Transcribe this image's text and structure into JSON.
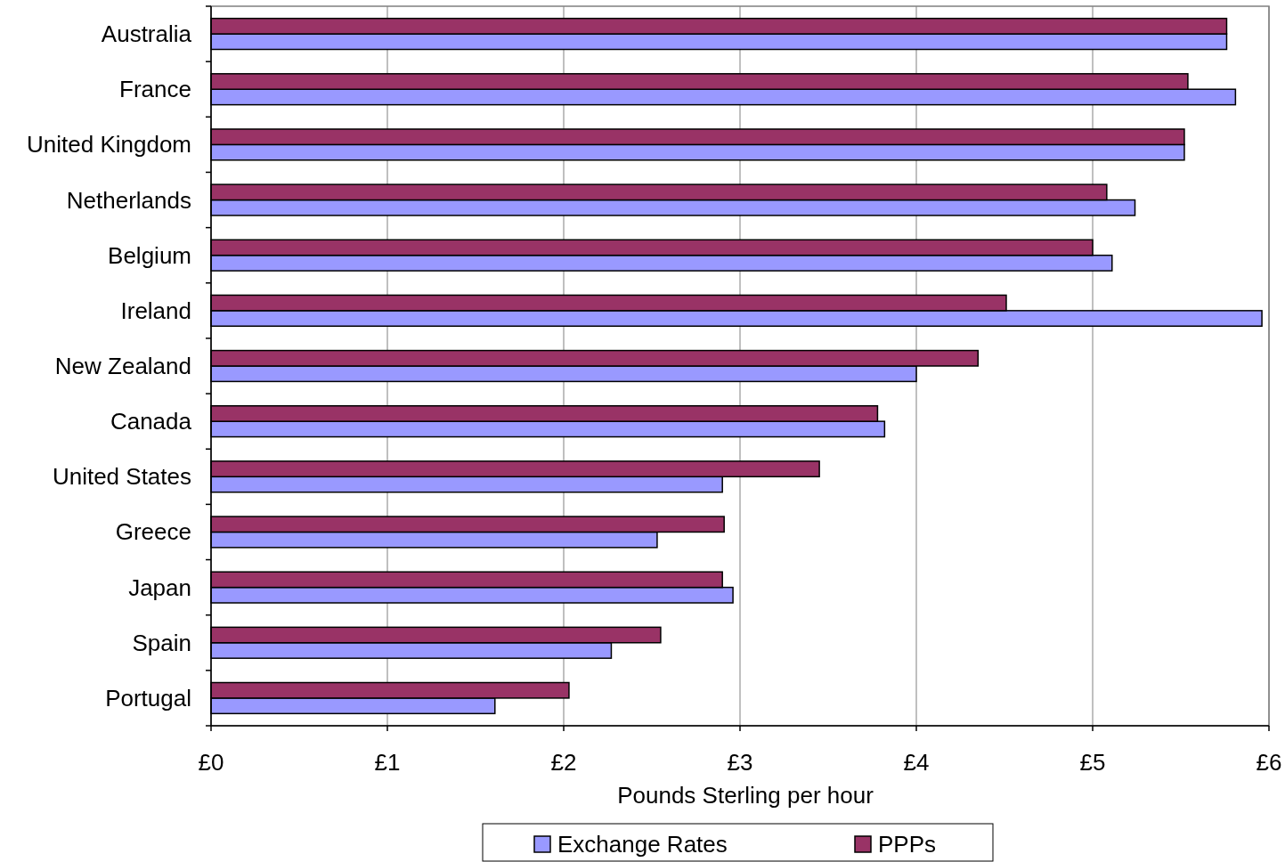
{
  "chart_data": {
    "type": "bar",
    "orientation": "horizontal",
    "xlabel": "Pounds Sterling per hour",
    "categories": [
      "Australia",
      "France",
      "United Kingdom",
      "Netherlands",
      "Belgium",
      "Ireland",
      "New Zealand",
      "Canada",
      "United States",
      "Greece",
      "Japan",
      "Spain",
      "Portugal"
    ],
    "series": [
      {
        "name": "Exchange Rates",
        "color": "#9999ff",
        "values": [
          5.76,
          5.81,
          5.52,
          5.24,
          5.11,
          5.96,
          4.0,
          3.82,
          2.9,
          2.53,
          2.96,
          2.27,
          1.61
        ]
      },
      {
        "name": "PPPs",
        "color": "#993366",
        "values": [
          5.76,
          5.54,
          5.52,
          5.08,
          5.0,
          4.51,
          4.35,
          3.78,
          3.45,
          2.91,
          2.9,
          2.55,
          2.03
        ]
      }
    ],
    "xlim": [
      0,
      6
    ],
    "xticks": [
      {
        "value": 0,
        "label": "£0"
      },
      {
        "value": 1,
        "label": "£1"
      },
      {
        "value": 2,
        "label": "£2"
      },
      {
        "value": 3,
        "label": "£3"
      },
      {
        "value": 4,
        "label": "£4"
      },
      {
        "value": 5,
        "label": "£5"
      },
      {
        "value": 6,
        "label": "£6"
      }
    ],
    "grid": "x",
    "legend": "bottom"
  }
}
